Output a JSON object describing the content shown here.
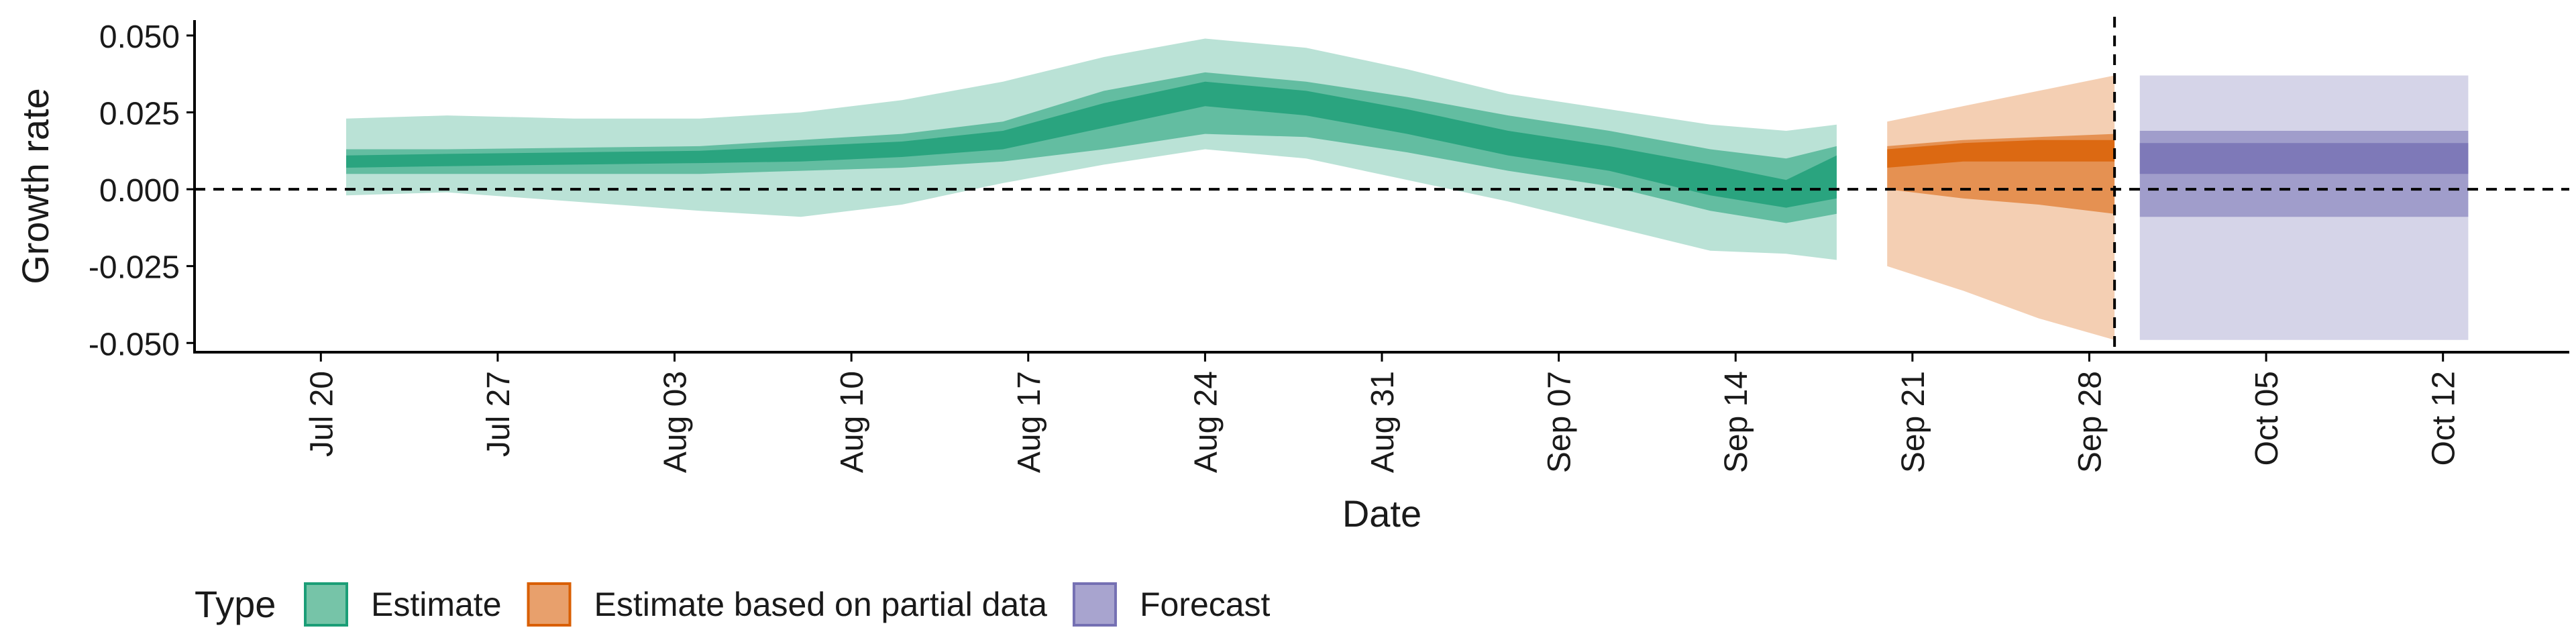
{
  "chart_data": {
    "type": "area",
    "xlabel": "Date",
    "ylabel": "Growth rate",
    "ylim": [
      -0.053,
      0.055
    ],
    "xlim": [
      "2020-07-15",
      "2020-10-17"
    ],
    "y_ticks": [
      0.05,
      0.025,
      0.0,
      -0.025,
      -0.05
    ],
    "y_tick_labels": [
      "0.050",
      "0.025",
      "0.000",
      "-0.025",
      "-0.050"
    ],
    "x_ticks": [
      "2020-07-20",
      "2020-07-27",
      "2020-08-03",
      "2020-08-10",
      "2020-08-17",
      "2020-08-24",
      "2020-08-31",
      "2020-09-07",
      "2020-09-14",
      "2020-09-21",
      "2020-09-28",
      "2020-10-05",
      "2020-10-12"
    ],
    "x_tick_labels": [
      "Jul 20",
      "Jul 27",
      "Aug 03",
      "Aug 10",
      "Aug 17",
      "Aug 24",
      "Aug 31",
      "Sep 07",
      "Sep 14",
      "Sep 21",
      "Sep 28",
      "Oct 05",
      "Oct 12"
    ],
    "reference_lines": {
      "horizontal_y": 0.0,
      "vertical_x": "2020-09-29"
    },
    "grid": false,
    "legend": {
      "title": "Type",
      "placement": "bottom",
      "entries": [
        {
          "label": "Estimate",
          "fill": "#76c4a8",
          "border": "#1b9e77"
        },
        {
          "label": "Estimate based on partial data",
          "fill": "#e8a06c",
          "border": "#d95f02"
        },
        {
          "label": "Forecast",
          "fill": "#a8a4cf",
          "border": "#7570b3"
        }
      ]
    },
    "series": [
      {
        "name": "Estimate",
        "color": "#1b9e77",
        "points": [
          {
            "date": "2020-07-21",
            "median": 0.009,
            "inner": [
              0.007,
              0.011
            ],
            "mid": [
              0.005,
              0.013
            ],
            "outer": [
              -0.002,
              0.023
            ]
          },
          {
            "date": "2020-07-25",
            "median": 0.0095,
            "inner": [
              0.0075,
              0.0115
            ],
            "mid": [
              0.005,
              0.013
            ],
            "outer": [
              -0.001,
              0.024
            ]
          },
          {
            "date": "2020-07-30",
            "median": 0.01,
            "inner": [
              0.008,
              0.012
            ],
            "mid": [
              0.005,
              0.0135
            ],
            "outer": [
              -0.004,
              0.023
            ]
          },
          {
            "date": "2020-08-04",
            "median": 0.0105,
            "inner": [
              0.0085,
              0.0125
            ],
            "mid": [
              0.005,
              0.014
            ],
            "outer": [
              -0.007,
              0.023
            ]
          },
          {
            "date": "2020-08-08",
            "median": 0.0115,
            "inner": [
              0.009,
              0.014
            ],
            "mid": [
              0.006,
              0.016
            ],
            "outer": [
              -0.009,
              0.025
            ]
          },
          {
            "date": "2020-08-12",
            "median": 0.013,
            "inner": [
              0.0105,
              0.0155
            ],
            "mid": [
              0.007,
              0.018
            ],
            "outer": [
              -0.005,
              0.029
            ]
          },
          {
            "date": "2020-08-16",
            "median": 0.016,
            "inner": [
              0.013,
              0.019
            ],
            "mid": [
              0.009,
              0.022
            ],
            "outer": [
              0.002,
              0.035
            ]
          },
          {
            "date": "2020-08-20",
            "median": 0.024,
            "inner": [
              0.02,
              0.028
            ],
            "mid": [
              0.013,
              0.032
            ],
            "outer": [
              0.008,
              0.043
            ]
          },
          {
            "date": "2020-08-24",
            "median": 0.031,
            "inner": [
              0.027,
              0.035
            ],
            "mid": [
              0.018,
              0.038
            ],
            "outer": [
              0.013,
              0.049
            ]
          },
          {
            "date": "2020-08-28",
            "median": 0.028,
            "inner": [
              0.024,
              0.032
            ],
            "mid": [
              0.017,
              0.035
            ],
            "outer": [
              0.01,
              0.046
            ]
          },
          {
            "date": "2020-09-01",
            "median": 0.022,
            "inner": [
              0.018,
              0.026
            ],
            "mid": [
              0.012,
              0.03
            ],
            "outer": [
              0.003,
              0.039
            ]
          },
          {
            "date": "2020-09-05",
            "median": 0.015,
            "inner": [
              0.011,
              0.019
            ],
            "mid": [
              0.006,
              0.024
            ],
            "outer": [
              -0.004,
              0.031
            ]
          },
          {
            "date": "2020-09-09",
            "median": 0.01,
            "inner": [
              0.006,
              0.014
            ],
            "mid": [
              0.001,
              0.019
            ],
            "outer": [
              -0.012,
              0.026
            ]
          },
          {
            "date": "2020-09-13",
            "median": 0.003,
            "inner": [
              -0.002,
              0.008
            ],
            "mid": [
              -0.007,
              0.013
            ],
            "outer": [
              -0.02,
              0.021
            ]
          },
          {
            "date": "2020-09-16",
            "median": -0.002,
            "inner": [
              -0.006,
              0.003
            ],
            "mid": [
              -0.011,
              0.01
            ],
            "outer": [
              -0.021,
              0.019
            ]
          },
          {
            "date": "2020-09-18",
            "median": 0.004,
            "inner": [
              -0.003,
              0.011
            ],
            "mid": [
              -0.008,
              0.014
            ],
            "outer": [
              -0.023,
              0.021
            ]
          }
        ]
      },
      {
        "name": "Estimate based on partial data",
        "color": "#d95f02",
        "points": [
          {
            "date": "2020-09-20",
            "median": 0.01,
            "inner": [
              0.007,
              0.013
            ],
            "mid": [
              0.0,
              0.014
            ],
            "outer": [
              -0.025,
              0.022
            ]
          },
          {
            "date": "2020-09-23",
            "median": 0.012,
            "inner": [
              0.009,
              0.015
            ],
            "mid": [
              -0.003,
              0.016
            ],
            "outer": [
              -0.033,
              0.027
            ]
          },
          {
            "date": "2020-09-26",
            "median": 0.013,
            "inner": [
              0.009,
              0.016
            ],
            "mid": [
              -0.005,
              0.017
            ],
            "outer": [
              -0.042,
              0.032
            ]
          },
          {
            "date": "2020-09-29",
            "median": 0.013,
            "inner": [
              0.009,
              0.016
            ],
            "mid": [
              -0.008,
              0.018
            ],
            "outer": [
              -0.049,
              0.037
            ]
          }
        ]
      },
      {
        "name": "Forecast",
        "color": "#7570b3",
        "points": [
          {
            "date": "2020-09-30",
            "median": 0.01,
            "inner": [
              0.005,
              0.015
            ],
            "mid": [
              -0.009,
              0.019
            ],
            "outer": [
              -0.049,
              0.037
            ]
          },
          {
            "date": "2020-10-13",
            "median": 0.01,
            "inner": [
              0.005,
              0.015
            ],
            "mid": [
              -0.009,
              0.019
            ],
            "outer": [
              -0.049,
              0.037
            ]
          }
        ]
      }
    ]
  }
}
